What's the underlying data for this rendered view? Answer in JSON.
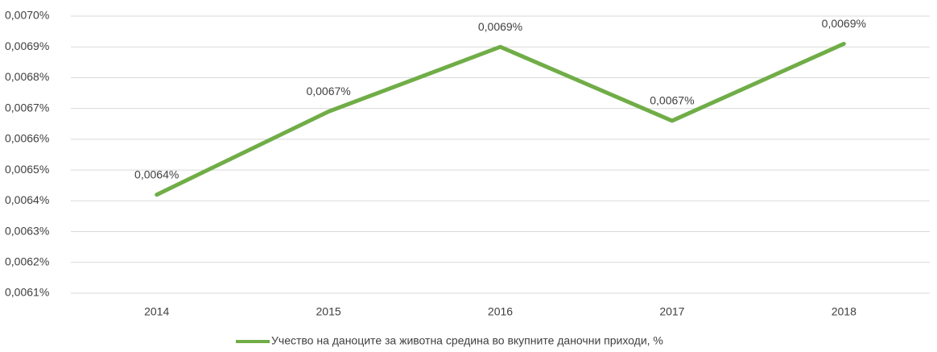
{
  "chart_data": {
    "type": "line",
    "categories": [
      "2014",
      "2015",
      "2016",
      "2017",
      "2018"
    ],
    "series": [
      {
        "name": "Учество на даноците за животна средина во вкупните даночни приходи, %",
        "color": "#70ad47",
        "values": [
          0.00642,
          0.00669,
          0.0069,
          0.00666,
          0.00691
        ],
        "value_labels": [
          "0,0064%",
          "0,0067%",
          "0,0069%",
          "0,0067%",
          "0,0069%"
        ]
      }
    ],
    "ylim": [
      0.0061,
      0.007
    ],
    "yticks": [
      {
        "value": 0.0061,
        "label": "0,0061%"
      },
      {
        "value": 0.0062,
        "label": "0,0062%"
      },
      {
        "value": 0.0063,
        "label": "0,0063%"
      },
      {
        "value": 0.0064,
        "label": "0,0064%"
      },
      {
        "value": 0.0065,
        "label": "0,0065%"
      },
      {
        "value": 0.0066,
        "label": "0,0066%"
      },
      {
        "value": 0.0067,
        "label": "0,0067%"
      },
      {
        "value": 0.0068,
        "label": "0,0068%"
      },
      {
        "value": 0.0069,
        "label": "0,0069%"
      },
      {
        "value": 0.007,
        "label": "0,0070%"
      }
    ],
    "grid": true,
    "legend": "bottom"
  }
}
